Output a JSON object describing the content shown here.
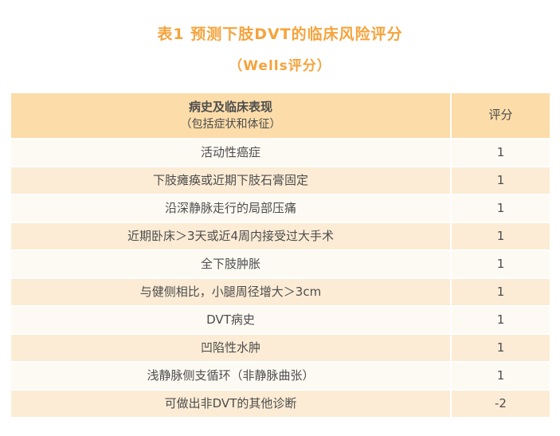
{
  "title": "表1 预测下肢DVT的临床风险评分",
  "subtitle": "（Wells评分）",
  "colors": {
    "accent": "#f5a33c",
    "text": "#4d4d4d",
    "header_bg": "#fcdca9",
    "row_odd_bg": "#fcecd5",
    "row_even_bg": "#fdfaf3"
  },
  "table": {
    "header": {
      "col1_line1": "病史及临床表现",
      "col1_line2": "（包括症状和体征）",
      "col2": "评分"
    },
    "rows": [
      {
        "label": "活动性癌症",
        "score": "1"
      },
      {
        "label": "下肢瘫痪或近期下肢石膏固定",
        "score": "1"
      },
      {
        "label": "沿深静脉走行的局部压痛",
        "score": "1"
      },
      {
        "label": "近期卧床＞3天或近4周内接受过大手术",
        "score": "1"
      },
      {
        "label": "全下肢肿胀",
        "score": "1"
      },
      {
        "label": "与健侧相比，小腿周径增大＞3cm",
        "score": "1"
      },
      {
        "label": "DVT病史",
        "score": "1"
      },
      {
        "label": "凹陷性水肿",
        "score": "1"
      },
      {
        "label": "浅静脉侧支循环（非静脉曲张）",
        "score": "1"
      },
      {
        "label": "可做出非DVT的其他诊断",
        "score": "-2"
      }
    ]
  }
}
